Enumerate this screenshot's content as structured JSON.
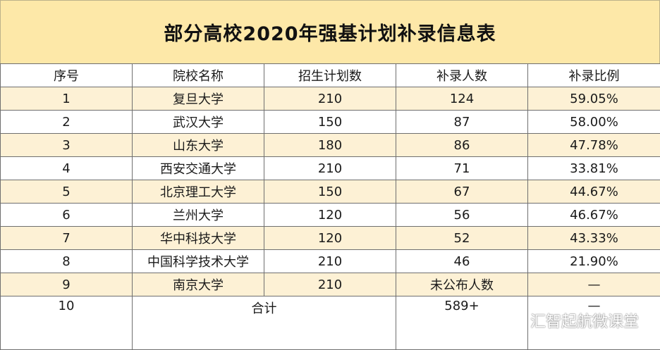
{
  "title": "部分高校2020年强基计划补录信息表",
  "headers": [
    "序号",
    "院校名称",
    "招生计划数",
    "补录人数",
    "补录比例"
  ],
  "rows": [
    {
      "no": "1",
      "school": "复旦大学",
      "plan": "210",
      "supplement": "124",
      "ratio": "59.05%"
    },
    {
      "no": "2",
      "school": "武汉大学",
      "plan": "150",
      "supplement": "87",
      "ratio": "58.00%"
    },
    {
      "no": "3",
      "school": "山东大学",
      "plan": "180",
      "supplement": "86",
      "ratio": "47.78%"
    },
    {
      "no": "4",
      "school": "西安交通大学",
      "plan": "210",
      "supplement": "71",
      "ratio": "33.81%"
    },
    {
      "no": "5",
      "school": "北京理工大学",
      "plan": "150",
      "supplement": "67",
      "ratio": "44.67%"
    },
    {
      "no": "6",
      "school": "兰州大学",
      "plan": "120",
      "supplement": "56",
      "ratio": "46.67%"
    },
    {
      "no": "7",
      "school": "华中科技大学",
      "plan": "120",
      "supplement": "52",
      "ratio": "43.33%"
    },
    {
      "no": "8",
      "school": "中国科学技术大学",
      "plan": "210",
      "supplement": "46",
      "ratio": "21.90%"
    },
    {
      "no": "9",
      "school": "南京大学",
      "plan": "210",
      "supplement": "未公布人数",
      "ratio": "—"
    }
  ],
  "total": {
    "no": "10",
    "label": "合计",
    "supplement": "589+",
    "ratio": "—"
  },
  "watermark": {
    "icon": "wechat-icon",
    "text": "汇智起航微课堂"
  },
  "colors": {
    "title_bg": "#fde8a8",
    "odd_row_bg": "#fdf1d5",
    "border": "#6f6f6f"
  }
}
